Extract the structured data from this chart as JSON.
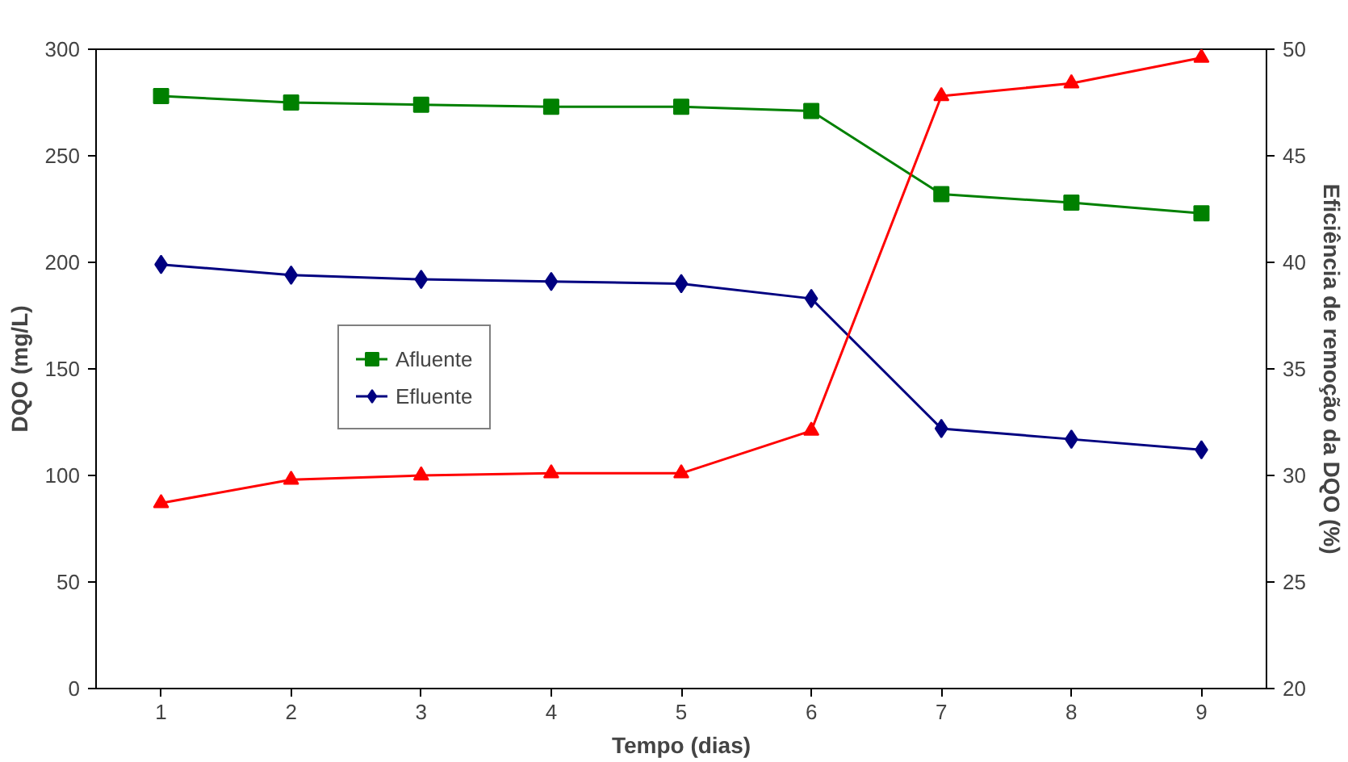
{
  "chart_data": {
    "type": "line",
    "xlabel": "Tempo (dias)",
    "ylabel": "DQO (mg/L)",
    "y2label": "Eficiência de remoção da DQO (%)",
    "categories": [
      "1",
      "2",
      "3",
      "4",
      "5",
      "6",
      "7",
      "8",
      "9"
    ],
    "ylim": [
      0,
      300
    ],
    "yticks": [
      0,
      50,
      100,
      150,
      200,
      250,
      300
    ],
    "y2lim": [
      20,
      50
    ],
    "y2ticks": [
      20,
      25,
      30,
      35,
      40,
      45,
      50
    ],
    "grid": false,
    "legend": "left",
    "series": [
      {
        "name": "Afluente",
        "color": "#008000",
        "marker": "square",
        "values": [
          278,
          275,
          274,
          273,
          273,
          271,
          232,
          228,
          223
        ]
      },
      {
        "name": "Efluente",
        "color": "#000080",
        "marker": "diamond",
        "values": [
          199,
          194,
          192,
          191,
          190,
          183,
          122,
          117,
          112
        ]
      },
      {
        "color": "#ff0000",
        "marker": "triangle",
        "axis": "y2",
        "values": [
          28.7,
          29.8,
          30.0,
          30.1,
          30.1,
          32.1,
          47.8,
          48.4,
          49.6
        ]
      }
    ]
  }
}
